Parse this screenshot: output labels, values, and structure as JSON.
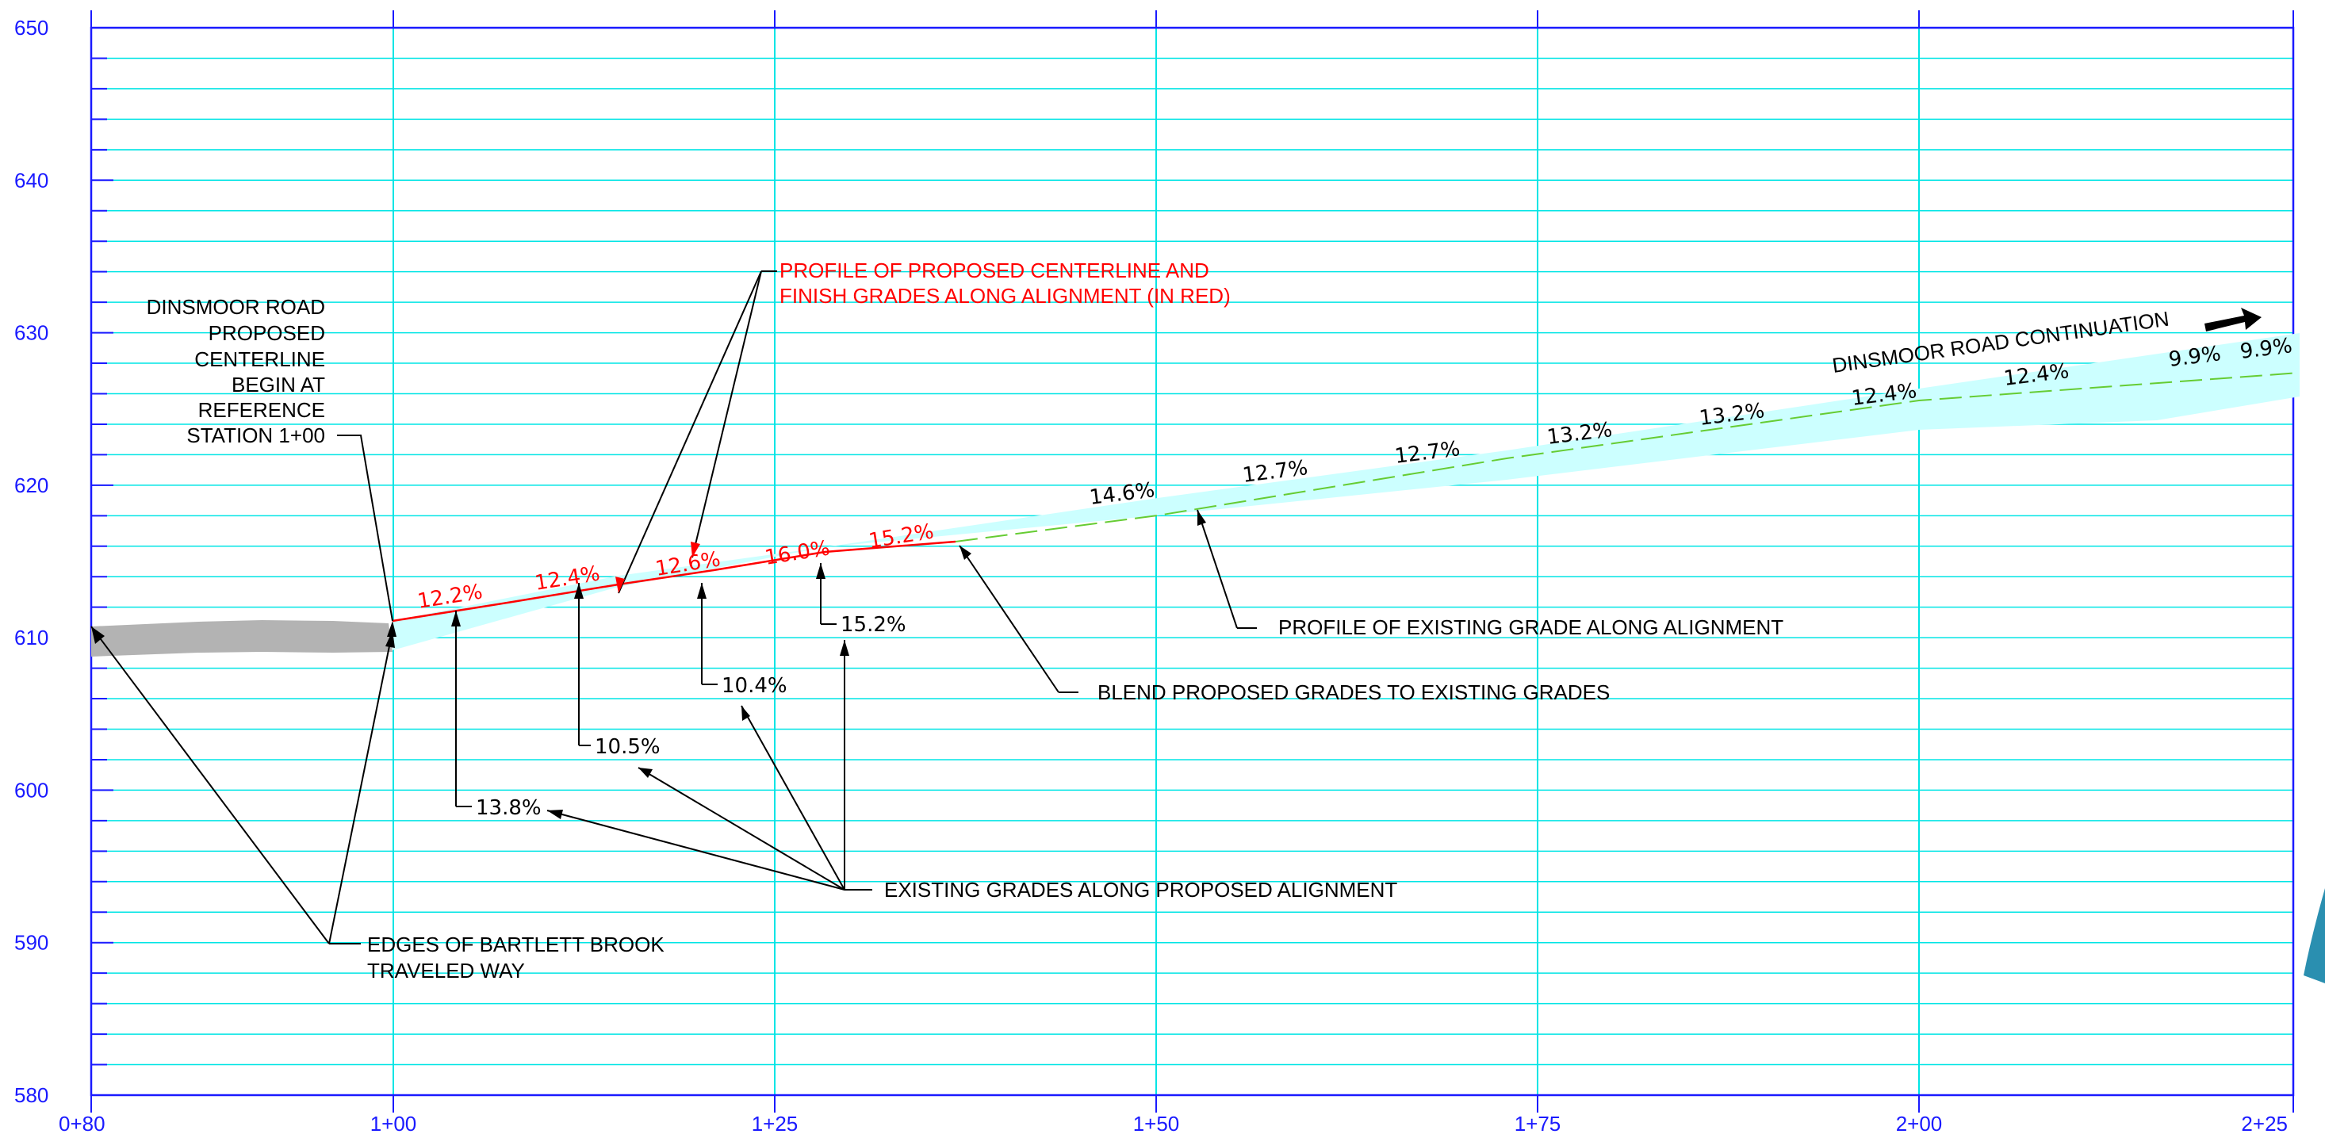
{
  "axes": {
    "y_ticks": [
      "650",
      "640",
      "630",
      "620",
      "610",
      "600",
      "590",
      "580"
    ],
    "x_ticks": [
      "0+80",
      "1+00",
      "1+25",
      "1+50",
      "1+75",
      "2+00",
      "2+25"
    ]
  },
  "notes": {
    "dinsmoor_begin": [
      "DINSMOOR ROAD",
      "PROPOSED",
      "CENTERLINE",
      "BEGIN AT",
      "REFERENCE",
      "STATION 1+00"
    ],
    "proposed_profile": [
      "PROFILE OF PROPOSED CENTERLINE AND",
      "FINISH GRADES ALONG ALIGNMENT (IN  RED)"
    ],
    "existing_profile": "PROFILE OF EXISTING GRADE ALONG ALIGNMENT",
    "blend": "BLEND PROPOSED GRADES TO EXISTING GRADES",
    "existing_grades": "EXISTING GRADES ALONG PROPOSED ALIGNMENT",
    "bartlett": [
      "EDGES OF BARTLETT BROOK",
      "TRAVELED WAY"
    ],
    "continuation": "DINSMOOR ROAD CONTINUATION"
  },
  "proposed_grades": [
    "12.2%",
    "12.4%",
    "12.6%",
    "16.0%",
    "15.2%"
  ],
  "existing_grades_lower": [
    "13.8%",
    "10.5%",
    "10.4%",
    "15.2%"
  ],
  "existing_grades_upper": [
    "14.6%",
    "12.7%",
    "12.7%",
    "13.2%",
    "13.2%",
    "12.4%",
    "12.4%",
    "9.9%",
    "9.9%"
  ],
  "colors": {
    "frame": "#1a1aff",
    "grid": "#00e5e5",
    "proposed": "#ff0000",
    "existing_band": "#ccffff",
    "brook_band": "#b3b3b3",
    "leader": "#000000",
    "continuation_line": "#66cc33"
  }
}
